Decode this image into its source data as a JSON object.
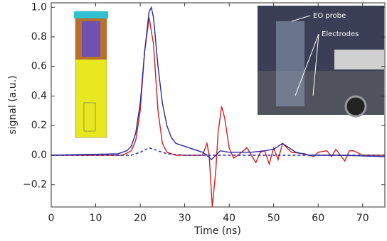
{
  "chart_data": {
    "type": "line",
    "xlabel": "Time (ns)",
    "ylabel": "signal (a.u.)",
    "xlim": [
      0,
      75
    ],
    "ylim": [
      -0.35,
      1.03
    ],
    "xticks": [
      0,
      10,
      20,
      30,
      40,
      50,
      60,
      70
    ],
    "yticks": [
      {
        "value": -0.2,
        "label": "−0.2"
      },
      {
        "value": 0,
        "label": "0.0"
      },
      {
        "value": 0.2,
        "label": "0.2"
      },
      {
        "value": 0.4,
        "label": "0.4"
      },
      {
        "value": 0.6,
        "label": "0.6"
      },
      {
        "value": 0.8,
        "label": "0.8"
      },
      {
        "value": 1.0,
        "label": "1.0"
      }
    ],
    "annotations": [
      "EO probe",
      "Electrodes"
    ],
    "series": [
      {
        "color": "#d42020",
        "dashed": false,
        "x": [
          0,
          10,
          16,
          18,
          19,
          20,
          21,
          22,
          23,
          24,
          25,
          26,
          28,
          30,
          33,
          34,
          35,
          35.5,
          36.2,
          37,
          37.5,
          38.3,
          39,
          40,
          41,
          42,
          44,
          46,
          47,
          48,
          49,
          50,
          51,
          52,
          54,
          57,
          59,
          60,
          62,
          63,
          64,
          66,
          67,
          68,
          70,
          75
        ],
        "values": [
          0,
          0,
          0,
          0.03,
          0.1,
          0.3,
          0.7,
          0.93,
          0.75,
          0.3,
          0.08,
          0.02,
          0,
          0,
          0,
          0,
          0.08,
          0,
          -0.35,
          -0.1,
          0.15,
          0.33,
          0.25,
          0.05,
          -0.02,
          0,
          0.05,
          -0.05,
          0.02,
          0.03,
          -0.06,
          0.05,
          -0.03,
          0.08,
          0.02,
          0.01,
          -0.01,
          0.02,
          0.03,
          -0.01,
          0.04,
          -0.04,
          0.03,
          0.03,
          0,
          0
        ]
      },
      {
        "color": "#2a2aa0",
        "dashed": false,
        "x": [
          0,
          15,
          17,
          18,
          19,
          20,
          21,
          22,
          22.5,
          23,
          24,
          25,
          26,
          27,
          28,
          30,
          32,
          34,
          35,
          36,
          37,
          38,
          40,
          45,
          48,
          50,
          52,
          53,
          55,
          58,
          65,
          75
        ],
        "values": [
          0,
          0.01,
          0.03,
          0.06,
          0.15,
          0.35,
          0.7,
          0.97,
          1.0,
          0.93,
          0.6,
          0.35,
          0.2,
          0.12,
          0.08,
          0.06,
          0.04,
          0.02,
          0,
          -0.03,
          0,
          0.03,
          0.02,
          0.02,
          0.03,
          0.04,
          0.08,
          0.06,
          0.02,
          0,
          0,
          -0.01
        ]
      },
      {
        "color": "#2a2aa0",
        "dashed": true,
        "x": [
          0,
          18,
          20,
          22,
          24,
          26,
          30,
          75
        ],
        "values": [
          0,
          0,
          0.02,
          0.05,
          0.03,
          0.01,
          0,
          0
        ]
      }
    ]
  }
}
